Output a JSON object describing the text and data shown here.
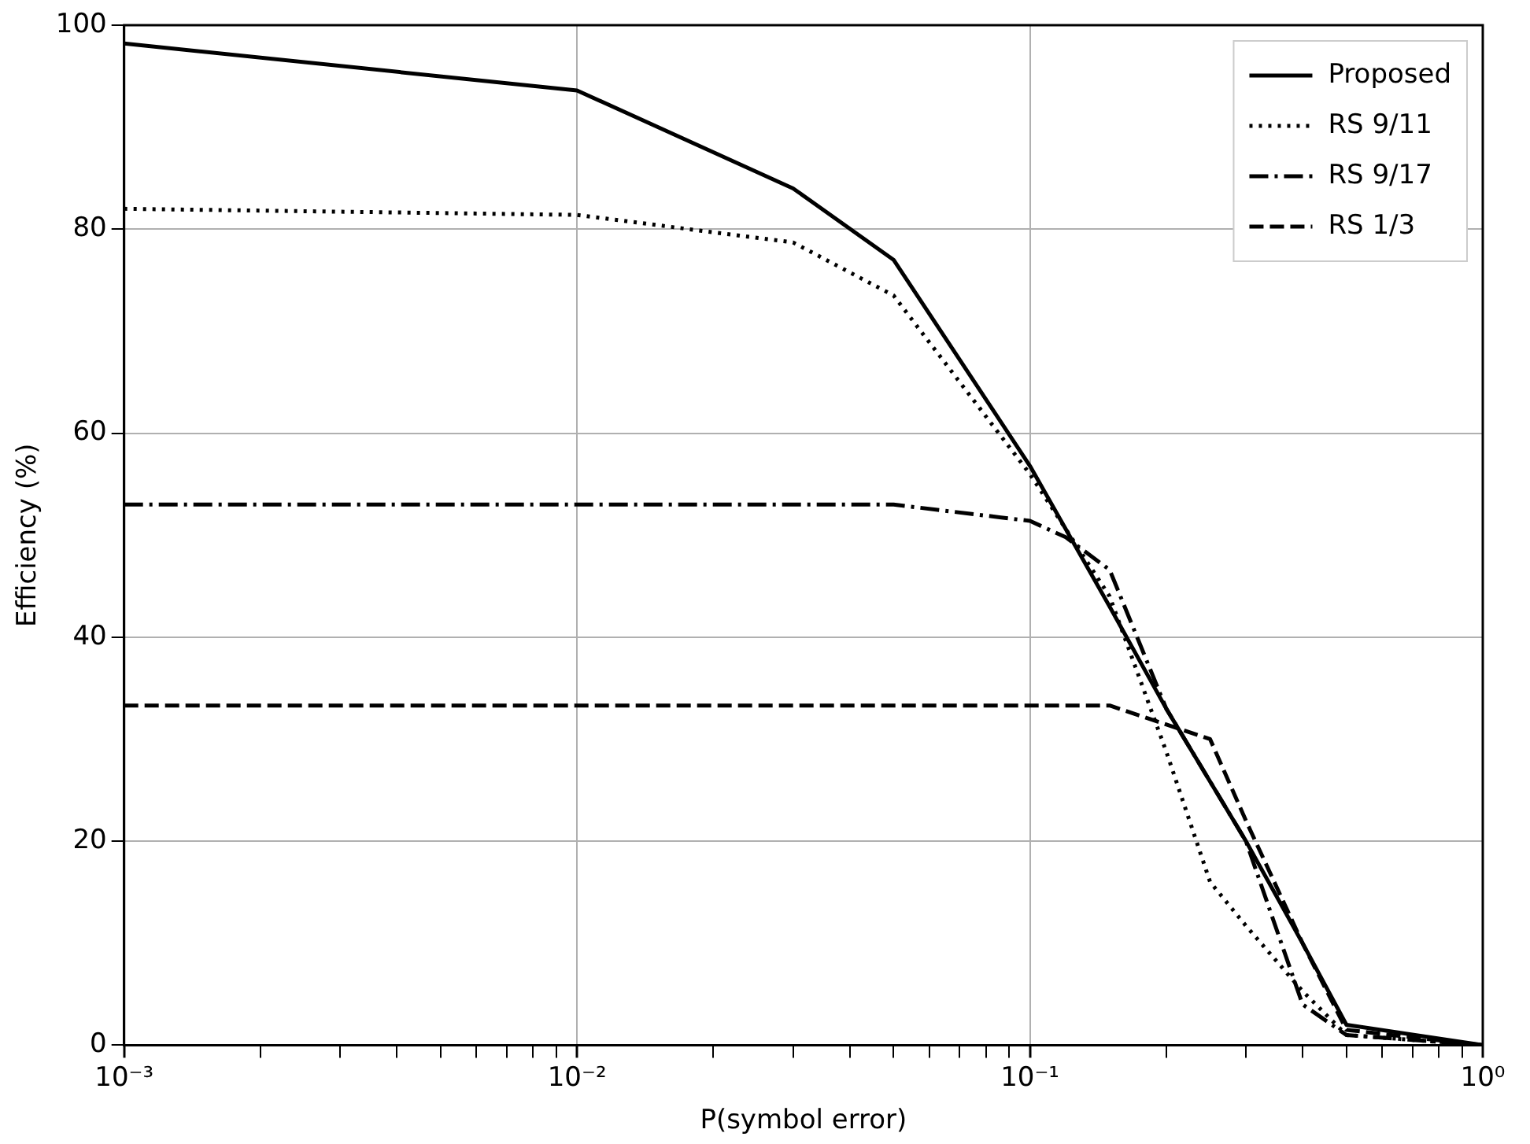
{
  "chart_data": {
    "type": "line",
    "xlabel": "P(symbol error)",
    "ylabel": "Efficiency (%)",
    "log": "x",
    "grid": true,
    "legend": "top right",
    "marker": "none",
    "xlim": [
      0.001,
      1
    ],
    "ylim": [
      0,
      100
    ],
    "yticks": [
      0,
      20,
      40,
      60,
      80,
      100
    ],
    "xticks": [
      {
        "value": 0.001,
        "label": "10⁻³"
      },
      {
        "value": 0.002,
        "label": null
      },
      {
        "value": 0.003,
        "label": null
      },
      {
        "value": 0.004,
        "label": null
      },
      {
        "value": 0.005,
        "label": null
      },
      {
        "value": 0.006,
        "label": null
      },
      {
        "value": 0.007,
        "label": null
      },
      {
        "value": 0.008,
        "label": null
      },
      {
        "value": 0.009,
        "label": null
      },
      {
        "value": 0.01,
        "label": "10⁻²"
      },
      {
        "value": 0.02,
        "label": null
      },
      {
        "value": 0.03,
        "label": null
      },
      {
        "value": 0.04,
        "label": null
      },
      {
        "value": 0.05,
        "label": null
      },
      {
        "value": 0.06,
        "label": null
      },
      {
        "value": 0.07,
        "label": null
      },
      {
        "value": 0.08,
        "label": null
      },
      {
        "value": 0.09,
        "label": null
      },
      {
        "value": 0.1,
        "label": "10⁻¹"
      },
      {
        "value": 0.2,
        "label": null
      },
      {
        "value": 0.3,
        "label": null
      },
      {
        "value": 0.4,
        "label": null
      },
      {
        "value": 0.5,
        "label": null
      },
      {
        "value": 0.6,
        "label": null
      },
      {
        "value": 0.7,
        "label": null
      },
      {
        "value": 0.8,
        "label": null
      },
      {
        "value": 0.9,
        "label": null
      },
      {
        "value": 1,
        "label": "10⁰"
      }
    ],
    "series": [
      {
        "name": "Proposed",
        "color": "#000000",
        "line_style": "solid",
        "x": [
          0.001,
          0.01,
          0.03,
          0.05,
          0.1,
          0.15,
          0.2,
          0.3,
          0.4,
          0.5,
          1
        ],
        "values": [
          98.2,
          93.6,
          84,
          77,
          56.8,
          43,
          33,
          20,
          10,
          2,
          0
        ]
      },
      {
        "name": "RS 9/11",
        "color": "#000000",
        "line_style": "dotted",
        "x": [
          0.001,
          0.01,
          0.03,
          0.05,
          0.1,
          0.15,
          0.2,
          0.25,
          0.3,
          0.4,
          0.5,
          1
        ],
        "values": [
          82,
          81.4,
          78.7,
          73.5,
          56,
          44,
          28.8,
          16,
          11.7,
          5.3,
          1,
          0
        ]
      },
      {
        "name": "RS 9/17",
        "color": "#000000",
        "line_style": "dashdot",
        "x": [
          0.001,
          0.01,
          0.05,
          0.1,
          0.12,
          0.15,
          0.2,
          0.3,
          0.4,
          0.5,
          1
        ],
        "values": [
          53,
          53,
          53,
          51.4,
          49.8,
          46.6,
          33,
          20,
          4,
          1,
          0
        ]
      },
      {
        "name": "RS 1/3",
        "color": "#000000",
        "line_style": "dashed",
        "x": [
          0.001,
          0.01,
          0.1,
          0.15,
          0.25,
          0.3,
          0.4,
          0.5,
          1
        ],
        "values": [
          33.3,
          33.3,
          33.3,
          33.3,
          30,
          22,
          10,
          1.5,
          0
        ]
      }
    ]
  }
}
